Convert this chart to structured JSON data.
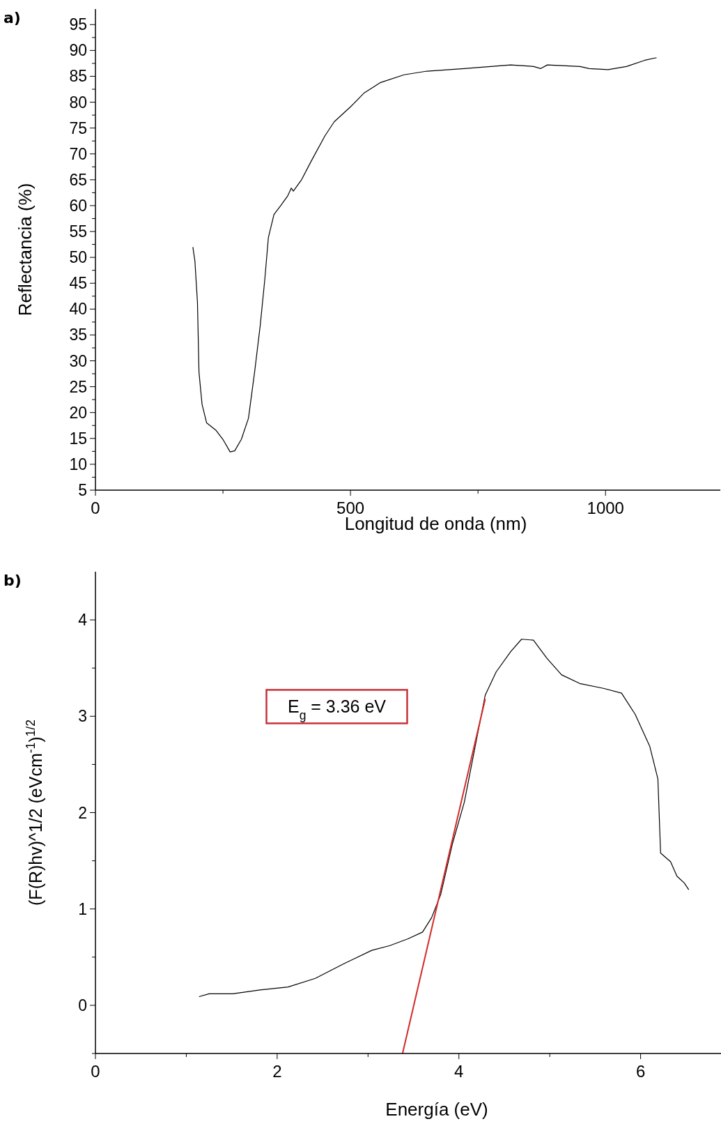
{
  "chart_data": [
    {
      "type": "line",
      "title": "a)",
      "xlabel": "Longitud de onda (nm)",
      "ylabel": "Reflectancia (%)",
      "xlim": [
        0,
        1225
      ],
      "ylim": [
        5,
        98
      ],
      "xticks": [
        0,
        {
          "value": 250,
          "label": null
        },
        500,
        {
          "value": 750,
          "label": null
        },
        1000
      ],
      "yticks": [
        5,
        {
          "value": 7.5,
          "label": null
        },
        10,
        {
          "value": 12.5,
          "label": null
        },
        15,
        {
          "value": 17.5,
          "label": null
        },
        20,
        {
          "value": 22.5,
          "label": null
        },
        25,
        {
          "value": 27.5,
          "label": null
        },
        30,
        {
          "value": 32.5,
          "label": null
        },
        35,
        {
          "value": 37.5,
          "label": null
        },
        40,
        {
          "value": 42.5,
          "label": null
        },
        45,
        {
          "value": 47.5,
          "label": null
        },
        50,
        {
          "value": 52.5,
          "label": null
        },
        55,
        {
          "value": 57.5,
          "label": null
        },
        60,
        {
          "value": 62.5,
          "label": null
        },
        65,
        {
          "value": 67.5,
          "label": null
        },
        70,
        {
          "value": 72.5,
          "label": null
        },
        75,
        {
          "value": 77.5,
          "label": null
        },
        80,
        {
          "value": 82.5,
          "label": null
        },
        85,
        {
          "value": 87.5,
          "label": null
        },
        90,
        {
          "value": 92.5,
          "label": null
        },
        95
      ],
      "grid": false,
      "line_style": "solid",
      "series": [
        {
          "color": "#000000",
          "x": [
            191,
            195,
            200,
            203,
            209,
            218,
            236,
            250,
            264,
            273,
            286,
            300,
            312,
            323,
            332,
            339,
            350,
            364,
            377,
            384,
            388,
            404,
            423,
            450,
            468,
            500,
            527,
            559,
            605,
            650,
            723,
            814,
            859,
            873,
            886,
            950,
            968,
            1005,
            1041,
            1077,
            1100
          ],
          "values": [
            52.0,
            49.3,
            41.3,
            27.8,
            21.6,
            18.0,
            16.6,
            14.8,
            12.4,
            12.6,
            14.8,
            18.9,
            27.8,
            36.8,
            45.7,
            53.8,
            58.3,
            60.1,
            61.9,
            63.4,
            62.8,
            65.0,
            68.6,
            73.5,
            76.2,
            79.1,
            81.8,
            83.8,
            85.3,
            86.0,
            86.5,
            87.2,
            86.9,
            86.5,
            87.2,
            86.9,
            86.5,
            86.3,
            86.9,
            88.1,
            88.6
          ]
        }
      ]
    },
    {
      "type": "line",
      "title": "b)",
      "xlabel": "Energía (eV)",
      "ylabel": "(F(R)hv)^1/2 (eVcm$^{-1}$)$^{1/2}$",
      "xlim": [
        0,
        6.9
      ],
      "ylim": [
        -0.5,
        4.5
      ],
      "xticks": [
        0,
        {
          "value": 1,
          "label": null
        },
        2,
        {
          "value": 3,
          "label": null
        },
        4,
        {
          "value": 5,
          "label": null
        },
        6
      ],
      "yticks": [
        {
          "value": -0.5,
          "label": null
        },
        0,
        {
          "value": 0.5,
          "label": null
        },
        1,
        {
          "value": 1.5,
          "label": null
        },
        2,
        {
          "value": 2.5,
          "label": null
        },
        3,
        {
          "value": 3.5,
          "label": null
        },
        4
      ],
      "grid": false,
      "line_style": "solid",
      "annotations": [
        "E$_{g}$ = 3.36 eV"
      ],
      "series": [
        {
          "color": "#000000",
          "x": [
            1.14,
            1.25,
            1.51,
            1.81,
            2.12,
            2.42,
            2.73,
            3.04,
            3.24,
            3.44,
            3.6,
            3.7,
            3.8,
            3.93,
            4.06,
            4.18,
            4.29,
            4.41,
            4.57,
            4.69,
            4.82,
            4.97,
            5.13,
            5.33,
            5.59,
            5.79,
            5.94,
            6.1,
            6.19,
            6.22,
            6.33,
            6.4,
            6.48,
            6.53
          ],
          "values": [
            0.09,
            0.12,
            0.12,
            0.16,
            0.19,
            0.28,
            0.43,
            0.57,
            0.62,
            0.69,
            0.76,
            0.91,
            1.15,
            1.68,
            2.11,
            2.69,
            3.22,
            3.46,
            3.67,
            3.8,
            3.79,
            3.6,
            3.43,
            3.34,
            3.29,
            3.24,
            3.02,
            2.69,
            2.35,
            1.58,
            1.49,
            1.34,
            1.27,
            1.2
          ]
        },
        {
          "type": "line",
          "color": "#d42a2a",
          "x": [
            3.38,
            4.29
          ],
          "values": [
            -0.5,
            3.18
          ]
        }
      ]
    }
  ]
}
